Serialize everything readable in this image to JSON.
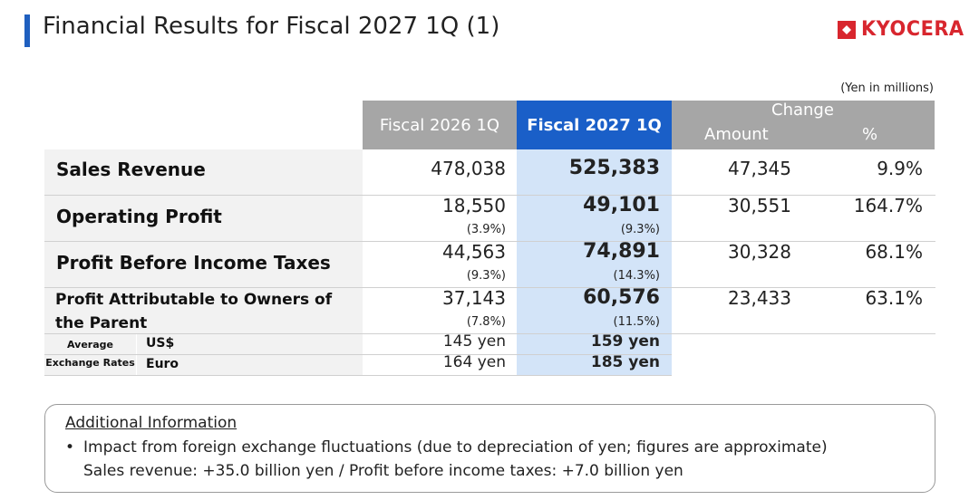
{
  "header": {
    "title": "Financial Results for Fiscal 2027 1Q (1)",
    "logo_text": "KYOCERA",
    "units_note": "(Yen in millions)"
  },
  "table": {
    "columns": {
      "prev": "Fiscal 2026 1Q",
      "curr": "Fiscal 2027 1Q",
      "change": "Change",
      "amount": "Amount",
      "percent": "%"
    },
    "rows": [
      {
        "label": "Sales Revenue",
        "prev": "478,038",
        "prev_ratio": "",
        "curr": "525,383",
        "curr_ratio": "",
        "amount": "47,345",
        "percent": "9.9%"
      },
      {
        "label": "Operating Profit",
        "prev": "18,550",
        "prev_ratio": "(3.9%)",
        "curr": "49,101",
        "curr_ratio": "(9.3%)",
        "amount": "30,551",
        "percent": "164.7%"
      },
      {
        "label": "Profit Before Income Taxes",
        "prev": "44,563",
        "prev_ratio": "(9.3%)",
        "curr": "74,891",
        "curr_ratio": "(14.3%)",
        "amount": "30,328",
        "percent": "68.1%"
      },
      {
        "label_line1": "Profit Attributable to Owners of",
        "label_line2": "the Parent",
        "prev": "37,143",
        "prev_ratio": "(7.8%)",
        "curr": "60,576",
        "curr_ratio": "(11.5%)",
        "amount": "23,433",
        "percent": "63.1%"
      }
    ],
    "fx": {
      "label_line1": "Average",
      "label_line2": "Exchange Rates",
      "rows": [
        {
          "currency": "US$",
          "prev": "145 yen",
          "curr": "159 yen"
        },
        {
          "currency": "Euro",
          "prev": "164 yen",
          "curr": "185 yen"
        }
      ]
    }
  },
  "additional_info": {
    "title": "Additional Information",
    "bullet_marker": "•",
    "line1": "Impact from foreign exchange fluctuations (due to depreciation of yen; figures are approximate)",
    "line2": "Sales revenue: +35.0 billion yen / Profit before income taxes: +7.0 billion yen"
  },
  "colors": {
    "accent_blue": "#1a5fc8",
    "header_grey": "#a6a6a6",
    "highlight_blue": "#d3e4f8",
    "label_grey": "#f2f2f2",
    "logo_red": "#d8262e"
  }
}
